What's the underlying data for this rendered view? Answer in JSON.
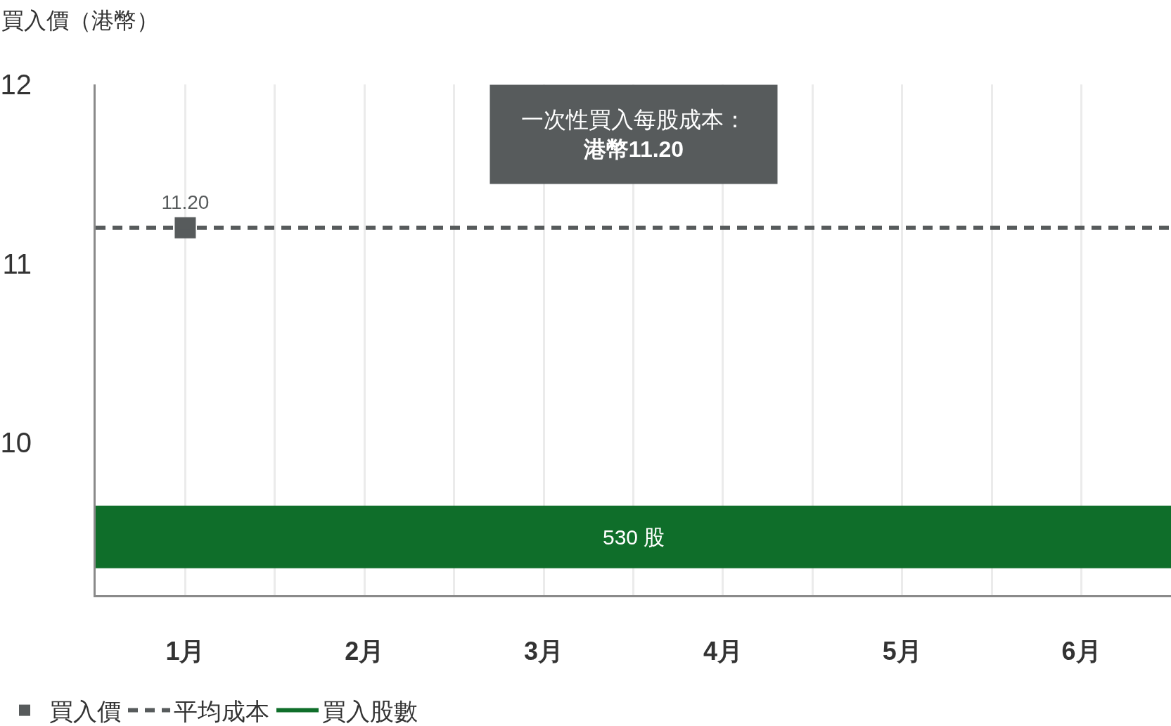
{
  "chart_data": {
    "type": "scatter",
    "ylabel": "買入價（港幣）",
    "series": [
      {
        "name": "買入價",
        "color": "#575b5c",
        "x": [
          1
        ],
        "values": [
          11.2
        ],
        "value_labels": [
          "11.20"
        ]
      }
    ],
    "ref_lines": [
      {
        "axis": "y",
        "value": 11.2,
        "label": "平均成本",
        "color": "#575b5c",
        "line_style": "dashed"
      }
    ],
    "bands": [
      {
        "axis": "y",
        "from": 9.3,
        "to": 9.65,
        "label": "買入股數",
        "color": "#0f6e2a"
      }
    ],
    "annotations": [
      "一次性買入每股成本：",
      "港幣11.20",
      "530 股"
    ],
    "xlim": [
      0.5,
      6.5
    ],
    "xticks": [
      {
        "value": 1,
        "label": "1月"
      },
      {
        "value": 1.5,
        "label": null
      },
      {
        "value": 2,
        "label": "2月"
      },
      {
        "value": 2.5,
        "label": null
      },
      {
        "value": 3,
        "label": "3月"
      },
      {
        "value": 3.5,
        "label": null
      },
      {
        "value": 4,
        "label": "4月"
      },
      {
        "value": 4.5,
        "label": null
      },
      {
        "value": 5,
        "label": "5月"
      },
      {
        "value": 5.5,
        "label": null
      },
      {
        "value": 6,
        "label": "6月"
      }
    ],
    "ylim": [
      9.15,
      12
    ],
    "yticks": [
      10,
      11,
      12
    ],
    "grid": "x",
    "legend": "bottom",
    "marker": "square"
  }
}
